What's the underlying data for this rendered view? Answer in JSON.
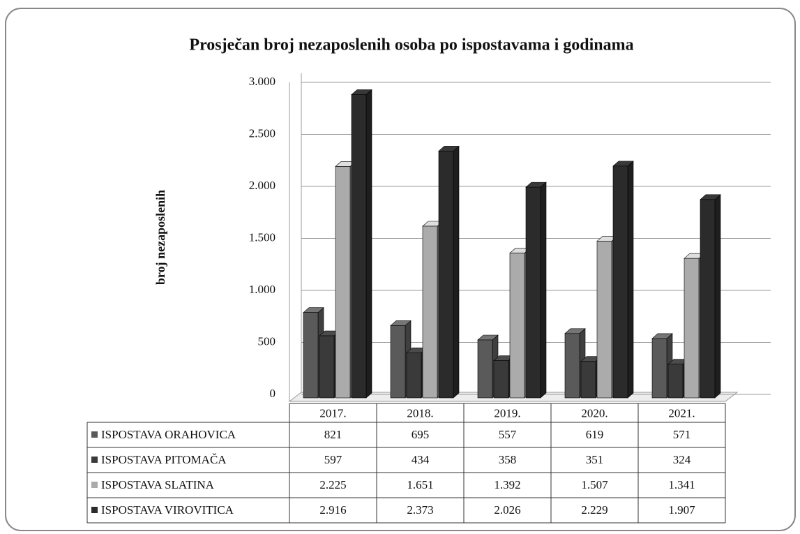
{
  "chart_data": {
    "type": "bar3d",
    "title": "Prosječan broj nezaposlenih osoba po ispostavama i godinama",
    "y_label": "broj nezaposlenih",
    "categories": [
      "2017.",
      "2018.",
      "2019.",
      "2020.",
      "2021."
    ],
    "series": [
      {
        "name": "ISPOSTAVA ORAHOVICA",
        "color": "#5a5a5a",
        "values": [
          821,
          695,
          557,
          619,
          571
        ],
        "value_labels": [
          "821",
          "695",
          "557",
          "619",
          "571"
        ]
      },
      {
        "name": "ISPOSTAVA PITOMAČA",
        "color": "#3a3a3a",
        "values": [
          597,
          434,
          358,
          351,
          324
        ],
        "value_labels": [
          "597",
          "434",
          "358",
          "351",
          "324"
        ]
      },
      {
        "name": "ISPOSTAVA SLATINA",
        "color": "#ababab",
        "values": [
          2225,
          1651,
          1392,
          1507,
          1341
        ],
        "value_labels": [
          "2.225",
          "1.651",
          "1.392",
          "1.507",
          "1.341"
        ]
      },
      {
        "name": "ISPOSTAVA VIROVITICA",
        "color": "#2b2b2b",
        "values": [
          2916,
          2373,
          2026,
          2229,
          1907
        ],
        "value_labels": [
          "2.916",
          "2.373",
          "2.026",
          "2.229",
          "1.907"
        ]
      }
    ],
    "ylim": [
      0,
      3000
    ],
    "yticks": [
      0,
      500,
      {
        "value": 1000,
        "label": "1.000"
      },
      {
        "value": 1500,
        "label": "1.500"
      },
      {
        "value": 2000,
        "label": "2.000"
      },
      {
        "value": 2500,
        "label": "2.500"
      },
      {
        "value": 3000,
        "label": "3.000"
      }
    ],
    "grid": true
  }
}
